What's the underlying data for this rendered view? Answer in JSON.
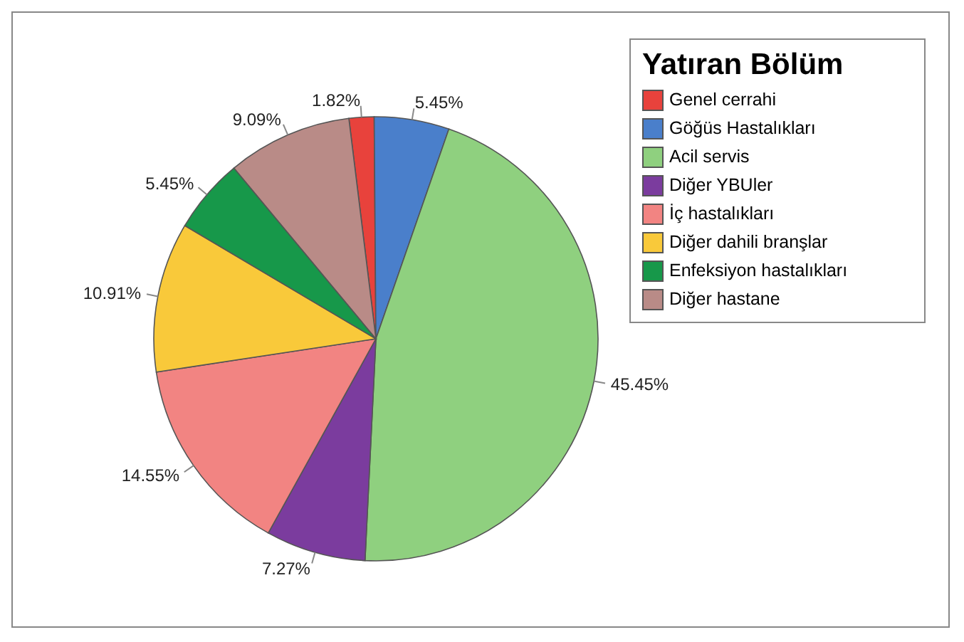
{
  "chart_data": {
    "type": "pie",
    "legend_title": "Yatıran Bölüm",
    "categories": [
      "Genel cerrahi",
      "Göğüs Hastalıkları",
      "Acil servis",
      "Diğer YBUler",
      "İç hastalıkları",
      "Diğer dahili branşlar",
      "Enfeksiyon hastalıkları",
      "Diğer hastane"
    ],
    "values": [
      1.82,
      5.45,
      45.45,
      7.27,
      14.55,
      10.91,
      5.45,
      9.09
    ],
    "value_labels": [
      "1.82%",
      "5.45%",
      "45.45%",
      "7.27%",
      "14.55%",
      "10.91%",
      "5.45%",
      "9.09%"
    ],
    "colors": [
      "#e8423c",
      "#4a7fcb",
      "#8fd07f",
      "#7b3c9e",
      "#f28482",
      "#f9c93a",
      "#17984a",
      "#b98b87"
    ],
    "legend": "top right"
  }
}
